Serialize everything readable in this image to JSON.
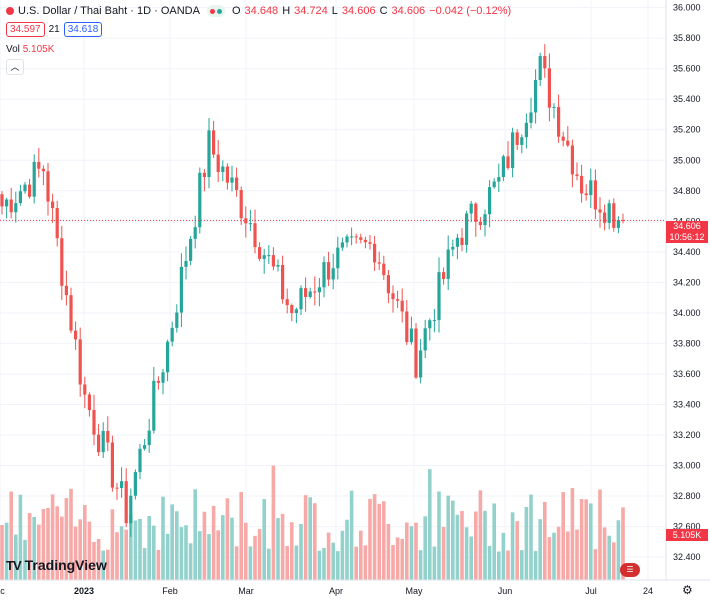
{
  "header": {
    "title": "U.S. Dollar / Thai Baht · 1D · OANDA",
    "open_label": "O",
    "open": "34.648",
    "high_label": "H",
    "high": "34.724",
    "low_label": "L",
    "low": "34.606",
    "close_label": "C",
    "close": "34.606",
    "change": "−0.042 (−0.12%)",
    "sell_price": "34.597",
    "spread": "21",
    "buy_price": "34.618"
  },
  "volume": {
    "label": "Vol",
    "value": "5.105K"
  },
  "price_tag": {
    "price": "34.606",
    "countdown": "10:56:12"
  },
  "volume_tag": "5.105K",
  "branding": {
    "logo_text": "TradingView",
    "logo_mark": "TV"
  },
  "colors": {
    "up": "#26a69a",
    "down": "#ef5350",
    "up_vol": "#93d2cc",
    "down_vol": "#f7a9a7",
    "grid": "#f0f3fa",
    "axis_text": "#131722"
  },
  "chart_data": {
    "type": "candlestick",
    "title": "U.S. Dollar / Thai Baht · 1D · OANDA",
    "y_axis": {
      "min": 32.25,
      "max": 36.05,
      "ticks": [
        "36.000",
        "35.800",
        "35.600",
        "35.400",
        "35.200",
        "35.000",
        "34.800",
        "34.600",
        "34.400",
        "34.200",
        "34.000",
        "33.800",
        "33.600",
        "33.400",
        "33.200",
        "33.000",
        "32.800",
        "32.600",
        "32.400"
      ]
    },
    "x_axis_labels": [
      "ec",
      "2023",
      "Feb",
      "Mar",
      "Apr",
      "May",
      "Jun",
      "Jul",
      "24"
    ],
    "last_price": 34.606,
    "keypoints_close": [
      {
        "date": "late Dec",
        "close": 34.7
      },
      {
        "date": "early Jan",
        "close": 34.95
      },
      {
        "date": "mid Jan",
        "close": 33.45
      },
      {
        "date": "late Jan",
        "close": 32.7
      },
      {
        "date": "early Feb",
        "close": 33.8
      },
      {
        "date": "late Feb",
        "close": 35.1
      },
      {
        "date": "early Mar",
        "close": 34.6
      },
      {
        "date": "mid Mar",
        "close": 34.0
      },
      {
        "date": "early Apr",
        "close": 34.35
      },
      {
        "date": "late Apr",
        "close": 34.45
      },
      {
        "date": "mid May",
        "close": 33.7
      },
      {
        "date": "late May",
        "close": 34.5
      },
      {
        "date": "mid Jun",
        "close": 34.85
      },
      {
        "date": "late Jun",
        "close": 35.6
      },
      {
        "date": "early Jul",
        "close": 34.85
      },
      {
        "date": "mid Jul",
        "close": 34.606
      }
    ],
    "volume_last": "5.105K"
  }
}
